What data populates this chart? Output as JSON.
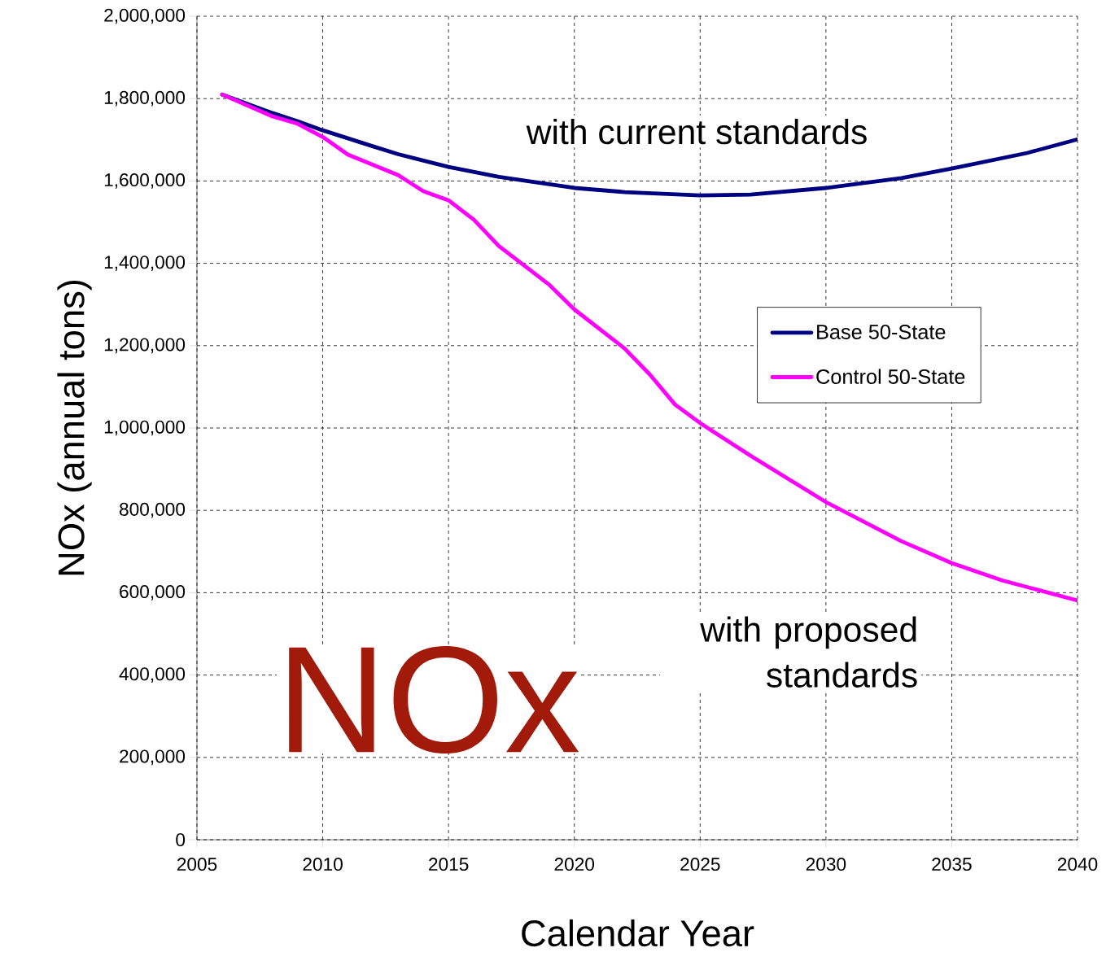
{
  "chart_data": {
    "type": "line",
    "xlabel": "Calendar Year",
    "ylabel": "NOx (annual tons)",
    "xlim": [
      2005,
      2040
    ],
    "xticks": [
      2005,
      2010,
      2015,
      2020,
      2025,
      2030,
      2035,
      2040
    ],
    "ylim": [
      0,
      2000000
    ],
    "yticks": [
      0,
      {
        "value": 200000,
        "label": "200,000"
      },
      {
        "value": 400000,
        "label": "400,000"
      },
      {
        "value": 600000,
        "label": "600,000"
      },
      {
        "value": 800000,
        "label": "800,000"
      },
      {
        "value": 1000000,
        "label": "1,000,000"
      },
      {
        "value": 1200000,
        "label": "1,200,000"
      },
      {
        "value": 1400000,
        "label": "1,400,000"
      },
      {
        "value": 1600000,
        "label": "1,600,000"
      },
      {
        "value": 1800000,
        "label": "1,800,000"
      },
      {
        "value": 2000000,
        "label": "2,000,000"
      }
    ],
    "grid": true,
    "legend": "right",
    "marker": "none",
    "line_style": "solid",
    "series": [
      {
        "name": "Base 50-State",
        "color": "#000080",
        "x": [
          2006,
          2008,
          2009,
          2010,
          2012,
          2013,
          2015,
          2017,
          2020,
          2022,
          2025,
          2027,
          2030,
          2033,
          2035,
          2038,
          2040
        ],
        "values": [
          1810000,
          1765000,
          1745000,
          1723000,
          1684000,
          1665000,
          1634000,
          1610000,
          1583000,
          1573000,
          1565000,
          1567000,
          1583000,
          1607000,
          1630000,
          1668000,
          1701000
        ]
      },
      {
        "name": "Control 50-State",
        "color": "#ff00ff",
        "x": [
          2006,
          2008,
          2009,
          2010,
          2011,
          2013,
          2014,
          2015,
          2016,
          2017,
          2019,
          2020,
          2022,
          2023,
          2024,
          2025,
          2027,
          2030,
          2033,
          2035,
          2037,
          2040
        ],
        "values": [
          1810000,
          1757000,
          1739000,
          1707000,
          1664000,
          1614000,
          1575000,
          1553000,
          1506000,
          1442000,
          1348000,
          1288000,
          1193000,
          1130000,
          1057000,
          1012000,
          933000,
          820000,
          725000,
          672000,
          630000,
          581000
        ]
      }
    ],
    "annotations": [
      "with current standards",
      "with proposed standards",
      "NOx"
    ]
  }
}
